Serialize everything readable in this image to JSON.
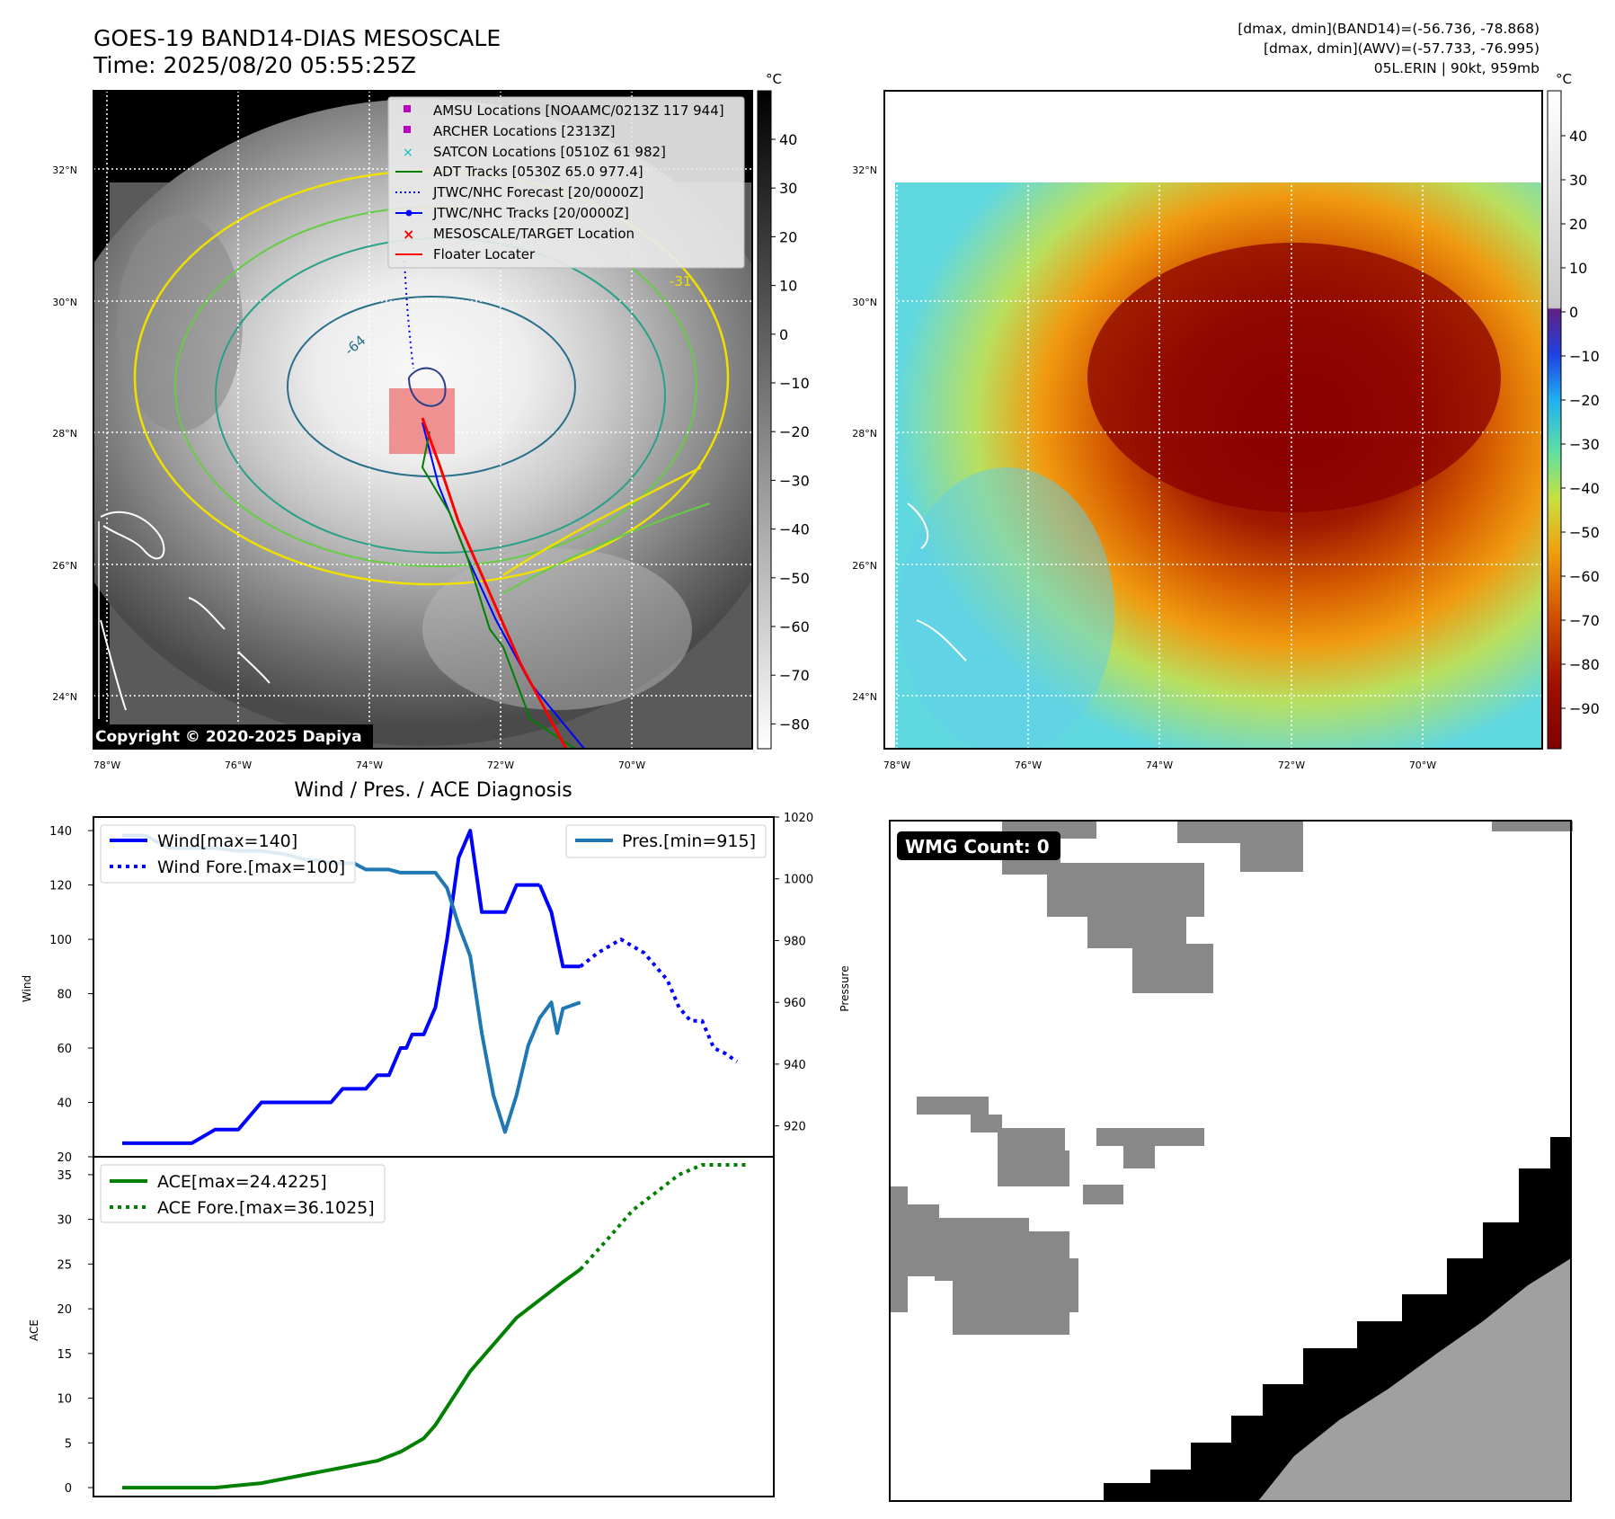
{
  "header": {
    "title": "GOES-19 BAND14-DIAS MESOSCALE",
    "time": "Time: 2025/08/20 05:55:25Z",
    "info_line1": "[dmax, dmin](BAND14)=(-56.736, -78.868)",
    "info_line2": "[dmax, dmin](AWV)=(-57.733, -76.995)",
    "info_line3": "05L.ERIN | 90kt, 959mb"
  },
  "map": {
    "lat_labels": [
      "32°N",
      "30°N",
      "28°N",
      "26°N",
      "24°N"
    ],
    "lon_labels": [
      "78°W",
      "76°W",
      "74°W",
      "72°W",
      "70°W"
    ],
    "copyright": "Copyright © 2020-2025 Dapiya",
    "contour_labels": [
      "-64",
      "-31"
    ],
    "legend": [
      {
        "label": "AMSU Locations [NOAAMC/0213Z 117 944]",
        "color": "#c000c0"
      },
      {
        "label": "ARCHER Locations [2313Z]",
        "color": "#c000c0"
      },
      {
        "label": "SATCON Locations [0510Z 61 982]",
        "color": "#00c0c0"
      },
      {
        "label": "ADT Tracks [0530Z 65.0 977.4]",
        "color": "#008000"
      },
      {
        "label": "JTWC/NHC Forecast [20/0000Z]",
        "color": "#0000ff"
      },
      {
        "label": "JTWC/NHC Tracks [20/0000Z]",
        "color": "#0000ff"
      },
      {
        "label": "MESOSCALE/TARGET Location",
        "color": "#ff0000"
      },
      {
        "label": "Floater Locater",
        "color": "#ff0000"
      }
    ]
  },
  "colorbars": {
    "unit": "°C",
    "left_ticks": [
      "40",
      "30",
      "20",
      "10",
      "0",
      "−10",
      "−20",
      "−30",
      "−40",
      "−50",
      "−60",
      "−70",
      "−80"
    ],
    "right_ticks": [
      "40",
      "30",
      "20",
      "10",
      "0",
      "−10",
      "−20",
      "−30",
      "−40",
      "−50",
      "−60",
      "−70",
      "−80",
      "−90"
    ]
  },
  "wmg": {
    "badge": "WMG Count: 0"
  },
  "chart_data": [
    {
      "type": "line",
      "title": "Wind / Pres. / ACE Diagnosis",
      "ylabel": "Wind",
      "y2label": "Pressure",
      "ylim": [
        20,
        145
      ],
      "y2lim": [
        910,
        1020
      ],
      "yticks": [
        "20",
        "40",
        "60",
        "80",
        "100",
        "120",
        "140"
      ],
      "y2ticks": [
        "920",
        "940",
        "960",
        "980",
        "1000",
        "1020"
      ],
      "series": [
        {
          "name": "Wind[max=140]",
          "color": "#0000ff",
          "style": "solid",
          "x": [
            0,
            2,
            4,
            6,
            8,
            10,
            12,
            14,
            16,
            17,
            18,
            19,
            20,
            21,
            22,
            23,
            24,
            24.5,
            25,
            26,
            27,
            28,
            29,
            30,
            31,
            32,
            33,
            34,
            36
          ],
          "values": [
            25,
            25,
            25,
            25,
            30,
            30,
            40,
            40,
            40,
            40,
            40,
            45,
            45,
            45,
            50,
            50,
            60,
            60,
            65,
            65,
            75,
            100,
            130,
            140,
            110,
            110,
            110,
            120,
            120
          ]
        },
        {
          "name": "Wind[max=140] tail",
          "color": "#0000ff",
          "style": "solid",
          "x": [
            36,
            37,
            38,
            39.5
          ],
          "values": [
            120,
            110,
            90,
            90
          ]
        },
        {
          "name": "Wind Fore.[max=100]",
          "color": "#0000ff",
          "style": "dotted",
          "x": [
            39.5,
            41,
            43,
            45,
            47,
            48,
            49,
            50,
            51,
            52,
            53
          ],
          "values": [
            90,
            95,
            100,
            95,
            85,
            75,
            70,
            70,
            60,
            58,
            55
          ]
        },
        {
          "name": "Pres.[min=915]",
          "color": "#1f77b4",
          "style": "solid",
          "axis": "y2",
          "x": [
            0,
            2,
            3,
            4,
            6,
            8,
            10,
            12,
            14,
            16,
            17,
            18,
            19,
            20,
            21,
            22,
            23,
            24,
            25,
            26,
            26.5,
            27,
            28,
            29,
            30,
            31,
            32,
            33,
            34,
            35,
            36,
            37,
            37.5,
            38,
            39.5
          ],
          "values": [
            1014,
            1014,
            1012,
            1010,
            1010,
            1010,
            1009,
            1009,
            1008,
            1006,
            1006,
            1005,
            1005,
            1005,
            1003,
            1003,
            1003,
            1002,
            1002,
            1002,
            1002,
            1002,
            997,
            985,
            975,
            950,
            930,
            918,
            930,
            946,
            955,
            960,
            950,
            958,
            960
          ]
        }
      ],
      "legend_left": [
        "Wind[max=140]",
        "Wind Fore.[max=100]"
      ],
      "legend_right": [
        "Pres.[min=915]"
      ]
    },
    {
      "type": "line",
      "ylabel": "ACE",
      "ylim": [
        -1,
        37
      ],
      "yticks": [
        "0",
        "5",
        "10",
        "15",
        "20",
        "25",
        "30",
        "35"
      ],
      "series": [
        {
          "name": "ACE[max=24.4225]",
          "color": "#008000",
          "style": "solid",
          "x": [
            0,
            4,
            8,
            12,
            16,
            18,
            20,
            22,
            24,
            26,
            27,
            28,
            29,
            30,
            32,
            34,
            36,
            38,
            39.5
          ],
          "values": [
            0,
            0,
            0,
            0.5,
            1.5,
            2,
            2.5,
            3,
            4,
            5.5,
            7,
            9,
            11,
            13,
            16,
            19,
            21,
            23,
            24.4
          ]
        },
        {
          "name": "ACE Fore.[max=36.1025]",
          "color": "#008000",
          "style": "dotted",
          "x": [
            39.5,
            42,
            44,
            46,
            48,
            50,
            52,
            54
          ],
          "values": [
            24.4,
            28,
            31,
            33,
            35,
            36.1,
            36.1,
            36.1
          ]
        }
      ],
      "legend": [
        "ACE[max=24.4225]",
        "ACE Fore.[max=36.1025]"
      ]
    }
  ]
}
